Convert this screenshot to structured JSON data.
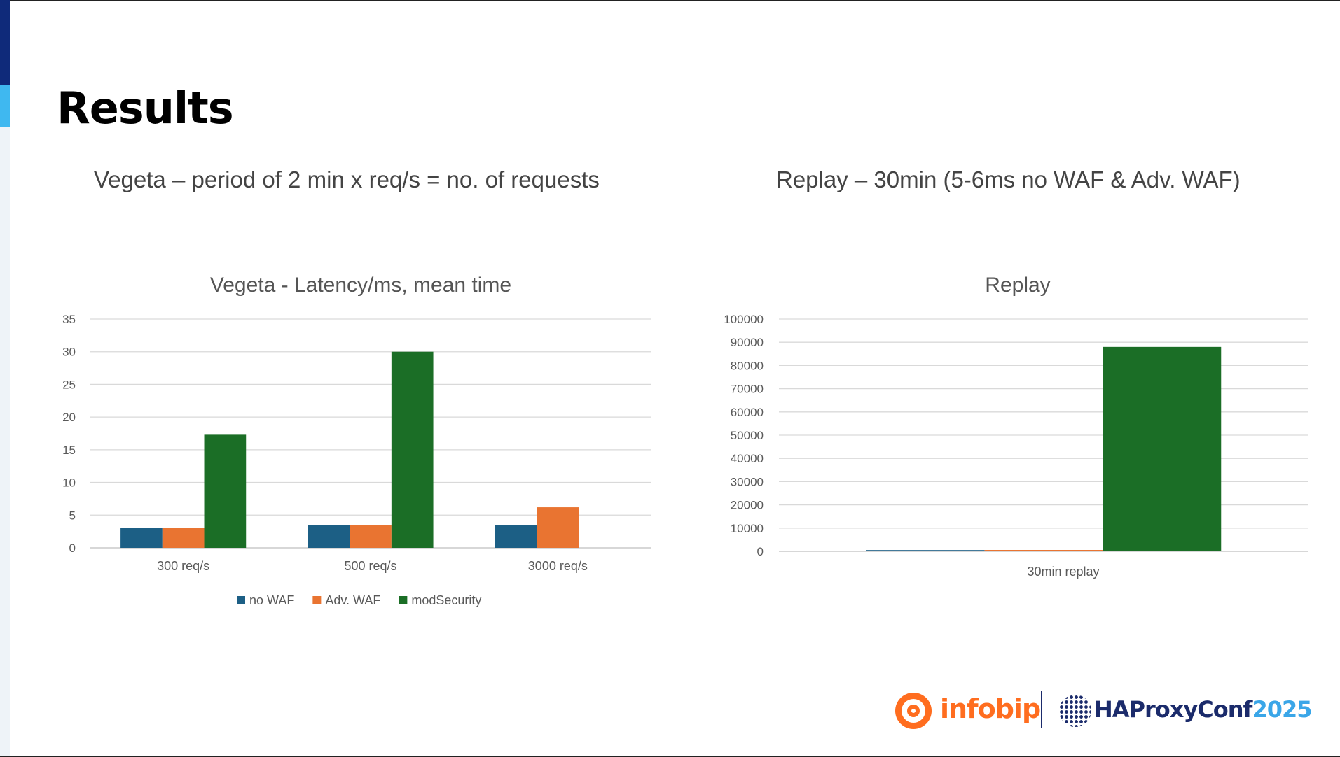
{
  "slide": {
    "title": "Results",
    "subtitle_left": "Vegeta – period of 2 min x req/s = no. of requests",
    "subtitle_right": "Replay – 30min (5-6ms no WAF & Adv. WAF)"
  },
  "branding": {
    "infobip": "infobip",
    "conf_name": "HAProxyConf",
    "conf_year": "2025",
    "infobip_color": "#ff6d1f",
    "haproxy_color": "#1b2b6b"
  },
  "colors": {
    "no_waf": "#1c5f85",
    "adv_waf": "#e97431",
    "modsecurity": "#1b6e26"
  },
  "chart_data": [
    {
      "type": "bar",
      "title": "Vegeta - Latency/ms, mean time",
      "categories": [
        "300 req/s",
        "500 req/s",
        "3000 req/s"
      ],
      "series": [
        {
          "name": "no WAF",
          "values": [
            3.1,
            3.5,
            3.5
          ],
          "color": "#1c5f85"
        },
        {
          "name": "Adv. WAF",
          "values": [
            3.1,
            3.5,
            6.2
          ],
          "color": "#e97431"
        },
        {
          "name": "modSecurity",
          "values": [
            17.3,
            30.0,
            null
          ],
          "color": "#1b6e26"
        }
      ],
      "ylim": [
        0,
        35
      ],
      "yticks": [
        0,
        5,
        10,
        15,
        20,
        25,
        30,
        35
      ],
      "xlabel": "",
      "ylabel": "",
      "grid": true,
      "legend": "bottom"
    },
    {
      "type": "bar",
      "title": "Replay",
      "categories": [
        "30min replay"
      ],
      "series": [
        {
          "values": [
            550
          ],
          "color": "#1c5f85"
        },
        {
          "values": [
            600
          ],
          "color": "#e97431"
        },
        {
          "values": [
            88000
          ],
          "color": "#1b6e26"
        }
      ],
      "ylim": [
        0,
        100000
      ],
      "yticks": [
        0,
        10000,
        20000,
        30000,
        40000,
        50000,
        60000,
        70000,
        80000,
        90000,
        100000
      ],
      "xlabel": "",
      "ylabel": "",
      "grid": true,
      "legend": "none"
    }
  ]
}
